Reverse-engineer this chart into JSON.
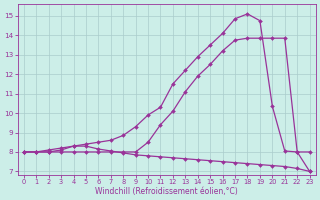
{
  "xlabel": "Windchill (Refroidissement éolien,°C)",
  "background_color": "#cceee8",
  "grid_color": "#aacccc",
  "line_color": "#993399",
  "xlim": [
    -0.5,
    23.5
  ],
  "ylim": [
    6.8,
    15.6
  ],
  "yticks": [
    7,
    8,
    9,
    10,
    11,
    12,
    13,
    14,
    15
  ],
  "xticks": [
    0,
    1,
    2,
    3,
    4,
    5,
    6,
    7,
    8,
    9,
    10,
    11,
    12,
    13,
    14,
    15,
    16,
    17,
    18,
    19,
    20,
    21,
    22,
    23
  ],
  "line1_x": [
    0,
    1,
    2,
    3,
    4,
    5,
    6,
    7,
    8,
    9,
    10,
    11,
    12,
    13,
    14,
    15,
    16,
    17,
    18,
    19,
    20,
    21,
    22,
    23
  ],
  "line1_y": [
    8.0,
    8.0,
    8.0,
    8.1,
    8.3,
    8.3,
    8.15,
    8.05,
    7.95,
    7.85,
    7.8,
    7.75,
    7.7,
    7.65,
    7.6,
    7.55,
    7.5,
    7.45,
    7.4,
    7.35,
    7.3,
    7.25,
    7.15,
    7.0
  ],
  "line2_x": [
    0,
    1,
    2,
    3,
    4,
    5,
    6,
    7,
    8,
    9,
    10,
    11,
    12,
    13,
    14,
    15,
    16,
    17,
    18,
    19,
    20,
    21,
    22,
    23
  ],
  "line2_y": [
    8.0,
    8.0,
    8.1,
    8.2,
    8.3,
    8.4,
    8.5,
    8.6,
    8.85,
    9.3,
    9.9,
    10.3,
    11.5,
    12.2,
    12.9,
    13.5,
    14.1,
    14.85,
    15.1,
    14.75,
    10.35,
    8.05,
    8.0,
    8.0
  ],
  "line3_x": [
    0,
    1,
    2,
    3,
    4,
    5,
    6,
    7,
    8,
    9,
    10,
    11,
    12,
    13,
    14,
    15,
    16,
    17,
    18,
    19,
    20,
    21,
    22,
    23
  ],
  "line3_y": [
    8.0,
    8.0,
    8.0,
    8.0,
    8.0,
    8.0,
    8.0,
    8.0,
    8.0,
    8.0,
    8.5,
    9.4,
    10.1,
    11.1,
    11.9,
    12.5,
    13.2,
    13.75,
    13.85,
    13.85,
    13.85,
    13.85,
    8.0,
    7.0
  ]
}
